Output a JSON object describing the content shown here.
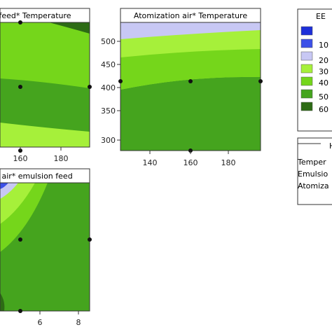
{
  "chart_data": {
    "type": "contour",
    "legend": {
      "title": "EE",
      "placement": "right",
      "levels": [
        "10",
        "20",
        "30",
        "40",
        "50",
        "60"
      ],
      "colors": [
        "#1d2fd9",
        "#3c50e8",
        "#c8c8f4",
        "#a6f03a",
        "#75d61b",
        "#45a41e",
        "#2d6b15"
      ]
    },
    "hold_box": {
      "title": "H",
      "items": [
        "Temper",
        "Emulsio",
        "Atomiza"
      ]
    },
    "panels": [
      {
        "id": "feed-temperature",
        "title": "n feed* Temperature",
        "x_ticks": [
          "160",
          "180"
        ],
        "y_ticks": [],
        "points": [
          {
            "x": 160,
            "y": 0.96
          },
          {
            "x": 160,
            "y": 0.54
          },
          {
            "x": 195,
            "y": 0.54
          },
          {
            "x": 160,
            "y": 0.0
          }
        ],
        "color_order": [
          "#75d61b",
          "#45a41e",
          "#a6f03a",
          "#2d6b15"
        ]
      },
      {
        "id": "air-temperature",
        "title": "Atomization air* Temperature",
        "x_ticks": [
          "140",
          "160",
          "180"
        ],
        "y_ticks": [
          "300",
          "350",
          "400",
          "450",
          "500"
        ],
        "xlim": [
          125,
          197
        ],
        "ylim": [
          285,
          540
        ],
        "points": [
          {
            "x": 125,
            "y": 418
          },
          {
            "x": 160,
            "y": 418
          },
          {
            "x": 197,
            "y": 418
          },
          {
            "x": 160,
            "y": 285
          }
        ],
        "color_order": [
          "#c8c8f4",
          "#a6f03a",
          "#75d61b",
          "#45a41e"
        ]
      },
      {
        "id": "air-emulsion-feed",
        "title": "n air* emulsion feed",
        "x_ticks": [
          "6",
          "8"
        ],
        "y_ticks": [],
        "xlim": [
          3.4,
          8.6
        ],
        "points": [
          {
            "x": 5.0,
            "y": 0.52
          },
          {
            "x": 8.6,
            "y": 0.52
          },
          {
            "x": 5.0,
            "y": 0.0
          }
        ],
        "color_order": [
          "#3c50e8",
          "#c8c8f4",
          "#a6f03a",
          "#75d61b",
          "#45a41e",
          "#2d6b15"
        ]
      }
    ]
  }
}
